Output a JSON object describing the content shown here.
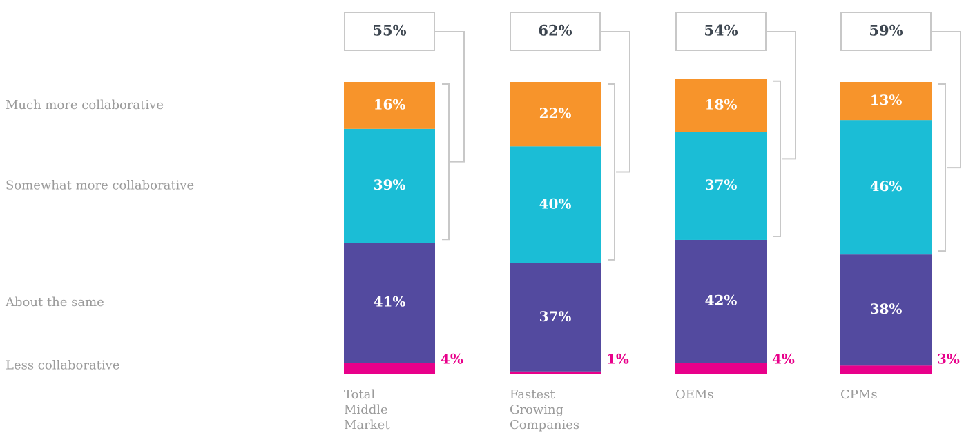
{
  "chart_data": {
    "type": "stacked-bar",
    "categories": [
      "Total Middle Market",
      "Fastest Growing Companies",
      "OEMs",
      "CPMs"
    ],
    "series": [
      {
        "name": "Less collaborative",
        "color": "#e8008a",
        "values": [
          4,
          1,
          4,
          3
        ],
        "value_labels": [
          "4%",
          "1%",
          "4%",
          "3%"
        ]
      },
      {
        "name": "About the same",
        "color": "#534a9f",
        "values": [
          41,
          37,
          42,
          38
        ],
        "value_labels": [
          "41%",
          "37%",
          "42%",
          "38%"
        ]
      },
      {
        "name": "Somewhat more collaborative",
        "color": "#1bbdd6",
        "values": [
          39,
          40,
          37,
          46
        ],
        "value_labels": [
          "39%",
          "40%",
          "37%",
          "46%"
        ]
      },
      {
        "name": "Much more collaborative",
        "color": "#f7942b",
        "values": [
          16,
          22,
          18,
          13
        ],
        "value_labels": [
          "16%",
          "22%",
          "18%",
          "13%"
        ]
      }
    ],
    "totals": {
      "values": [
        55,
        62,
        54,
        59
      ],
      "value_labels": [
        "55%",
        "62%",
        "54%",
        "59%"
      ]
    }
  }
}
